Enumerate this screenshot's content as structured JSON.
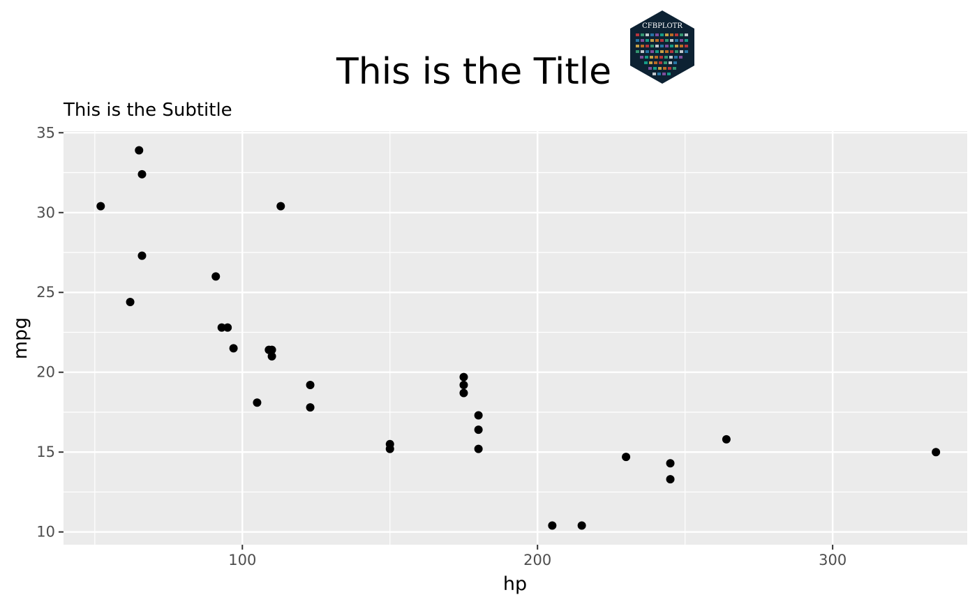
{
  "chart_data": {
    "type": "scatter",
    "title": "This is the Title",
    "subtitle": "This is the Subtitle",
    "xlabel": "hp",
    "ylabel": "mpg",
    "xlim": [
      39.4,
      345.6
    ],
    "ylim": [
      9.2,
      35.1
    ],
    "x_ticks": [
      100,
      200,
      300
    ],
    "y_ticks": [
      10,
      15,
      20,
      25,
      30,
      35
    ],
    "x_tick_labels": [
      "100",
      "200",
      "300"
    ],
    "y_tick_labels": [
      "10",
      "15",
      "20",
      "25",
      "30",
      "35"
    ],
    "grid": true,
    "legend": "none",
    "points": [
      {
        "x": 52,
        "y": 30.4
      },
      {
        "x": 62,
        "y": 24.4
      },
      {
        "x": 65,
        "y": 33.9
      },
      {
        "x": 66,
        "y": 32.4
      },
      {
        "x": 66,
        "y": 27.3
      },
      {
        "x": 91,
        "y": 26.0
      },
      {
        "x": 93,
        "y": 22.8
      },
      {
        "x": 95,
        "y": 22.8
      },
      {
        "x": 97,
        "y": 21.5
      },
      {
        "x": 105,
        "y": 18.1
      },
      {
        "x": 109,
        "y": 21.4
      },
      {
        "x": 110,
        "y": 21.0
      },
      {
        "x": 110,
        "y": 21.4
      },
      {
        "x": 113,
        "y": 30.4
      },
      {
        "x": 123,
        "y": 19.2
      },
      {
        "x": 123,
        "y": 17.8
      },
      {
        "x": 150,
        "y": 15.5
      },
      {
        "x": 150,
        "y": 15.2
      },
      {
        "x": 175,
        "y": 19.7
      },
      {
        "x": 175,
        "y": 19.2
      },
      {
        "x": 175,
        "y": 18.7
      },
      {
        "x": 180,
        "y": 17.3
      },
      {
        "x": 180,
        "y": 16.4
      },
      {
        "x": 180,
        "y": 15.2
      },
      {
        "x": 205,
        "y": 10.4
      },
      {
        "x": 215,
        "y": 10.4
      },
      {
        "x": 230,
        "y": 14.7
      },
      {
        "x": 245,
        "y": 14.3
      },
      {
        "x": 245,
        "y": 13.3
      },
      {
        "x": 264,
        "y": 15.8
      },
      {
        "x": 335,
        "y": 15.0
      }
    ]
  },
  "logo": {
    "text": "CFBPLOTR",
    "background": "#0d2233"
  },
  "colors": {
    "panel": "#ebebeb",
    "grid_major": "#ffffff",
    "point": "#000000",
    "tick_text": "#4d4d4d"
  }
}
